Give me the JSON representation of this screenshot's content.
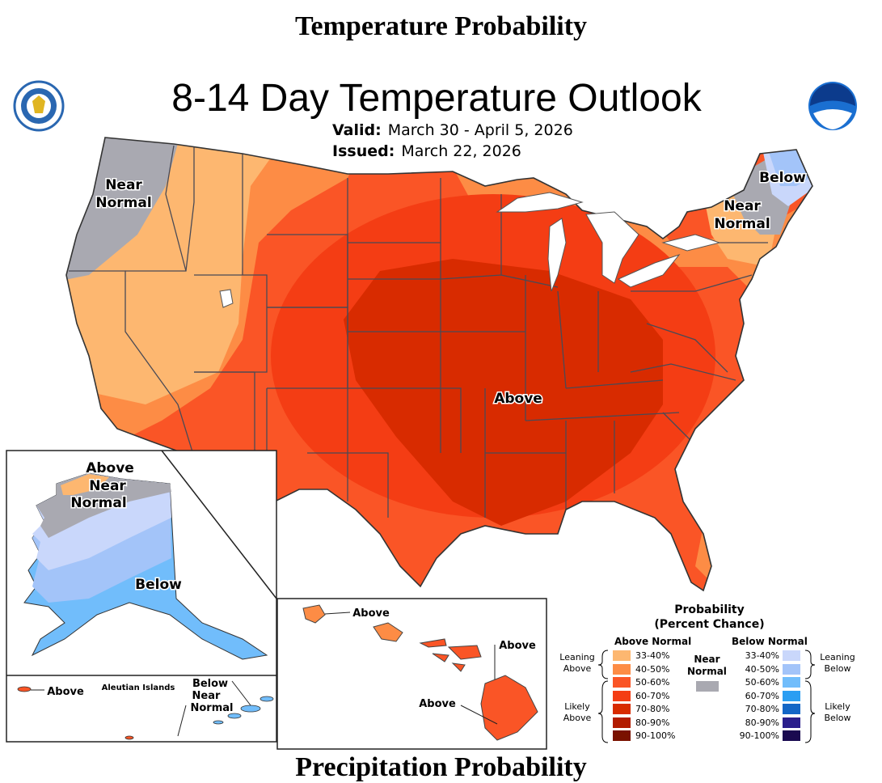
{
  "header_title": "Temperature Probability",
  "map": {
    "title": "8-14 Day Temperature Outlook",
    "valid_label": "Valid:",
    "valid_value": "March 30 - April 5, 2026",
    "issued_label": "Issued:",
    "issued_value": "March 22, 2026",
    "region_labels": {
      "near_normal_west_1": "Near",
      "near_normal_west_2": "Normal",
      "below_ne": "Below",
      "near_normal_ne_1": "Near",
      "near_normal_ne_2": "Normal",
      "above_central": "Above"
    },
    "alaska_labels": {
      "above": "Above",
      "near_1": "Near",
      "near_2": "Normal",
      "below": "Below"
    },
    "aleutian_labels": {
      "above": "Above",
      "title": "Aleutian Islands",
      "below_near_1": "Below",
      "below_near_2": "Near",
      "below_near_3": "Normal"
    },
    "hawaii_labels": {
      "above_1": "Above",
      "above_2": "Above",
      "above_3": "Above"
    },
    "colors": {
      "near_normal": "#a9a9b1",
      "above_33_40": "#fdb770",
      "above_40_50": "#fd8c45",
      "above_50_60": "#fa5526",
      "above_60_70": "#f43d14",
      "above_70_80": "#d82b00",
      "below_33_40": "#c9d7fb",
      "below_40_50": "#a3c4f9",
      "below_50_60": "#71bdfb"
    }
  },
  "legend": {
    "title_line1": "Probability",
    "title_line2": "(Percent Chance)",
    "above_header": "Above Normal",
    "below_header": "Below Normal",
    "near_line1": "Near",
    "near_line2": "Normal",
    "above_leaning_1": "Leaning",
    "above_leaning_2": "Above",
    "above_likely_1": "Likely",
    "above_likely_2": "Above",
    "below_leaning_1": "Leaning",
    "below_leaning_2": "Below",
    "below_likely_1": "Likely",
    "below_likely_2": "Below",
    "above_rows": [
      {
        "label": "33-40%",
        "color": "#fdb770"
      },
      {
        "label": "40-50%",
        "color": "#fd8c45"
      },
      {
        "label": "50-60%",
        "color": "#fa5526"
      },
      {
        "label": "60-70%",
        "color": "#f43d14"
      },
      {
        "label": "70-80%",
        "color": "#d82b00"
      },
      {
        "label": "80-90%",
        "color": "#b21c00"
      },
      {
        "label": "90-100%",
        "color": "#7a1200"
      }
    ],
    "below_rows": [
      {
        "label": "33-40%",
        "color": "#c9d7fb"
      },
      {
        "label": "40-50%",
        "color": "#a3c4f9"
      },
      {
        "label": "50-60%",
        "color": "#71bdfb"
      },
      {
        "label": "60-70%",
        "color": "#2b9ef2"
      },
      {
        "label": "70-80%",
        "color": "#1366c6"
      },
      {
        "label": "80-90%",
        "color": "#2b1f8c"
      },
      {
        "label": "90-100%",
        "color": "#1a0a50"
      }
    ]
  },
  "footer_title": "Precipitation Probability"
}
